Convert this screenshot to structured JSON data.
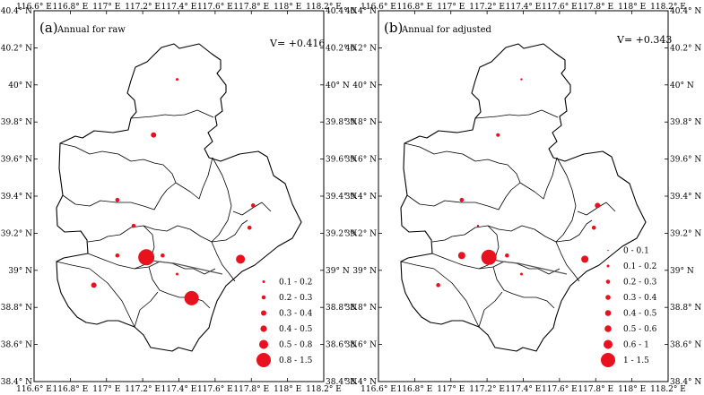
{
  "colors": {
    "dot": "#e8121e",
    "frame": "#000000"
  },
  "axes": {
    "lon_ticks": [
      "116.6° E",
      "116.8° E",
      "117° E",
      "117.2° E",
      "117.4° E",
      "117.6° E",
      "117.8° E",
      "118° E",
      "118.2° E"
    ],
    "lat_ticks": [
      "40.4° N",
      "40.2° N",
      "40° N",
      "39.8° N",
      "39.6° N",
      "39.4° N",
      "39.2° N",
      "39° N",
      "38.8° N",
      "38.6° N",
      "38.4° N"
    ]
  },
  "panels": [
    {
      "id": "a",
      "label": "(a)",
      "subtitle": "Annual for raw",
      "v_value": "V= +0.416",
      "legend": [
        {
          "range": "0.1 - 0.2",
          "size": 1.5
        },
        {
          "range": "0.2 - 0.3",
          "size": 2.3
        },
        {
          "range": "0.3 - 0.4",
          "size": 3.0
        },
        {
          "range": "0.4 - 0.5",
          "size": 3.6
        },
        {
          "range": "0.5 - 0.8",
          "size": 5.0
        },
        {
          "range": "0.8 - 1.5",
          "size": 8.0
        }
      ],
      "stations": [
        {
          "lon": 117.39,
          "lat": 40.03,
          "size": 1.5
        },
        {
          "lon": 117.26,
          "lat": 39.73,
          "size": 3.0
        },
        {
          "lon": 117.06,
          "lat": 39.38,
          "size": 2.3
        },
        {
          "lon": 117.15,
          "lat": 39.24,
          "size": 2.3
        },
        {
          "lon": 117.81,
          "lat": 39.35,
          "size": 2.3
        },
        {
          "lon": 117.79,
          "lat": 39.23,
          "size": 2.3
        },
        {
          "lon": 117.06,
          "lat": 39.08,
          "size": 2.3
        },
        {
          "lon": 117.22,
          "lat": 39.07,
          "size": 9.0
        },
        {
          "lon": 117.31,
          "lat": 39.08,
          "size": 2.3
        },
        {
          "lon": 117.39,
          "lat": 38.98,
          "size": 1.5
        },
        {
          "lon": 117.74,
          "lat": 39.06,
          "size": 5.0
        },
        {
          "lon": 116.93,
          "lat": 38.92,
          "size": 3.0
        },
        {
          "lon": 117.47,
          "lat": 38.85,
          "size": 8.0
        }
      ]
    },
    {
      "id": "b",
      "label": "(b)",
      "subtitle": "Annual for adjusted",
      "v_value": "V= +0.343",
      "legend": [
        {
          "range": "0 - 0.1",
          "size": 0.8
        },
        {
          "range": "0.1 - 0.2",
          "size": 1.5
        },
        {
          "range": "0.2 - 0.3",
          "size": 2.3
        },
        {
          "range": "0.3 - 0.4",
          "size": 2.8
        },
        {
          "range": "0.4 - 0.5",
          "size": 3.3
        },
        {
          "range": "0.5 - 0.6",
          "size": 3.8
        },
        {
          "range": "0.6 - 1",
          "size": 5.0
        },
        {
          "range": "1 - 1.5",
          "size": 8.0
        }
      ],
      "stations": [
        {
          "lon": 117.39,
          "lat": 40.03,
          "size": 1.2
        },
        {
          "lon": 117.26,
          "lat": 39.73,
          "size": 2.0
        },
        {
          "lon": 117.06,
          "lat": 39.38,
          "size": 2.3
        },
        {
          "lon": 117.15,
          "lat": 39.24,
          "size": 1.2
        },
        {
          "lon": 117.81,
          "lat": 39.35,
          "size": 3.0
        },
        {
          "lon": 117.79,
          "lat": 39.23,
          "size": 2.3
        },
        {
          "lon": 117.06,
          "lat": 39.08,
          "size": 4.0
        },
        {
          "lon": 117.21,
          "lat": 39.07,
          "size": 8.5
        },
        {
          "lon": 117.31,
          "lat": 39.08,
          "size": 2.3
        },
        {
          "lon": 117.39,
          "lat": 38.98,
          "size": 1.5
        },
        {
          "lon": 117.74,
          "lat": 39.06,
          "size": 4.0
        },
        {
          "lon": 116.93,
          "lat": 38.92,
          "size": 2.3
        }
      ]
    }
  ]
}
